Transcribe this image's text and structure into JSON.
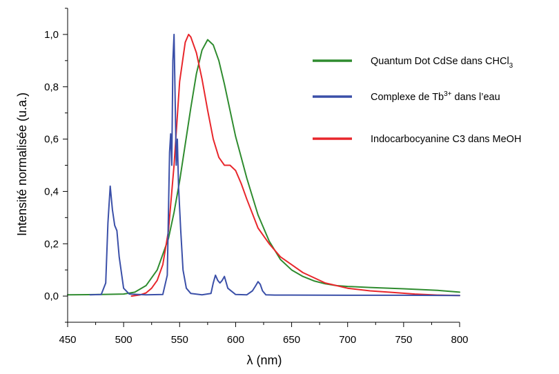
{
  "chart_data": {
    "type": "line",
    "xlabel": "λ (nm)",
    "ylabel": "Intensité normalisée (u.a.)",
    "xlim": [
      450,
      800
    ],
    "ylim": [
      -0.1,
      1.1
    ],
    "x_ticks": [
      450,
      500,
      550,
      600,
      650,
      700,
      750,
      800
    ],
    "x_tick_labels": [
      "450",
      "500",
      "550",
      "600",
      "650",
      "700",
      "750",
      "800"
    ],
    "y_ticks": [
      0.0,
      0.2,
      0.4,
      0.6,
      0.8,
      1.0
    ],
    "y_tick_labels": [
      "0,0",
      "0,2",
      "0,4",
      "0,6",
      "0,8",
      "1,0"
    ],
    "grid": false,
    "legend_position": "top-right",
    "series": [
      {
        "name": "Quantum Dot CdSe dans CHCl3",
        "legend": {
          "main": "Quantum Dot CdSe dans CHCl",
          "sub": "3",
          "tail": ""
        },
        "color": "#2e8b2e",
        "x": [
          450,
          480,
          500,
          510,
          520,
          530,
          540,
          545,
          550,
          555,
          560,
          565,
          570,
          575,
          580,
          585,
          590,
          595,
          600,
          610,
          620,
          630,
          640,
          650,
          660,
          670,
          680,
          690,
          700,
          720,
          750,
          780,
          800
        ],
        "y": [
          0.005,
          0.006,
          0.008,
          0.015,
          0.04,
          0.1,
          0.22,
          0.32,
          0.44,
          0.58,
          0.72,
          0.85,
          0.94,
          0.98,
          0.96,
          0.9,
          0.81,
          0.71,
          0.61,
          0.45,
          0.31,
          0.21,
          0.14,
          0.1,
          0.075,
          0.058,
          0.047,
          0.04,
          0.037,
          0.033,
          0.028,
          0.022,
          0.015
        ]
      },
      {
        "name": "Complexe de Tb3+ dans l’eau",
        "legend": {
          "main": "Complexe de Tb",
          "sup": "3+",
          "tail": " dans l’eau"
        },
        "color": "#3a4fa8",
        "x": [
          470,
          480,
          484,
          486,
          488,
          490,
          492,
          494,
          496,
          500,
          505,
          520,
          535,
          539,
          541,
          542,
          543,
          544,
          545,
          546,
          547,
          548,
          549,
          551,
          553,
          556,
          560,
          570,
          578,
          580,
          582,
          584,
          586,
          588,
          590,
          593,
          600,
          610,
          615,
          618,
          620,
          622,
          624,
          627,
          635,
          650,
          700,
          750,
          800
        ],
        "y": [
          0.005,
          0.006,
          0.05,
          0.28,
          0.42,
          0.33,
          0.27,
          0.25,
          0.15,
          0.03,
          0.008,
          0.005,
          0.006,
          0.08,
          0.55,
          0.62,
          0.5,
          0.9,
          1.0,
          0.75,
          0.5,
          0.6,
          0.42,
          0.25,
          0.1,
          0.03,
          0.01,
          0.005,
          0.01,
          0.05,
          0.08,
          0.06,
          0.05,
          0.06,
          0.075,
          0.03,
          0.006,
          0.005,
          0.02,
          0.04,
          0.055,
          0.045,
          0.02,
          0.005,
          0.004,
          0.004,
          0.003,
          0.003,
          0.002
        ]
      },
      {
        "name": "Indocarbocyanine C3 dans MeOH",
        "legend": {
          "main": "Indocarbocyanine C3 dans MeOH",
          "tail": ""
        },
        "color": "#e8262b",
        "x": [
          507,
          515,
          520,
          525,
          530,
          535,
          540,
          545,
          550,
          555,
          558,
          560,
          565,
          570,
          575,
          580,
          585,
          590,
          595,
          600,
          605,
          610,
          620,
          630,
          640,
          650,
          660,
          670,
          680,
          690,
          700,
          720,
          740,
          760,
          780,
          800
        ],
        "y": [
          0.0,
          0.005,
          0.012,
          0.03,
          0.06,
          0.12,
          0.25,
          0.5,
          0.82,
          0.97,
          1.0,
          0.99,
          0.93,
          0.83,
          0.71,
          0.6,
          0.53,
          0.5,
          0.5,
          0.48,
          0.43,
          0.37,
          0.26,
          0.2,
          0.15,
          0.12,
          0.09,
          0.07,
          0.05,
          0.04,
          0.03,
          0.02,
          0.014,
          0.008,
          0.004,
          0.002
        ]
      }
    ]
  }
}
